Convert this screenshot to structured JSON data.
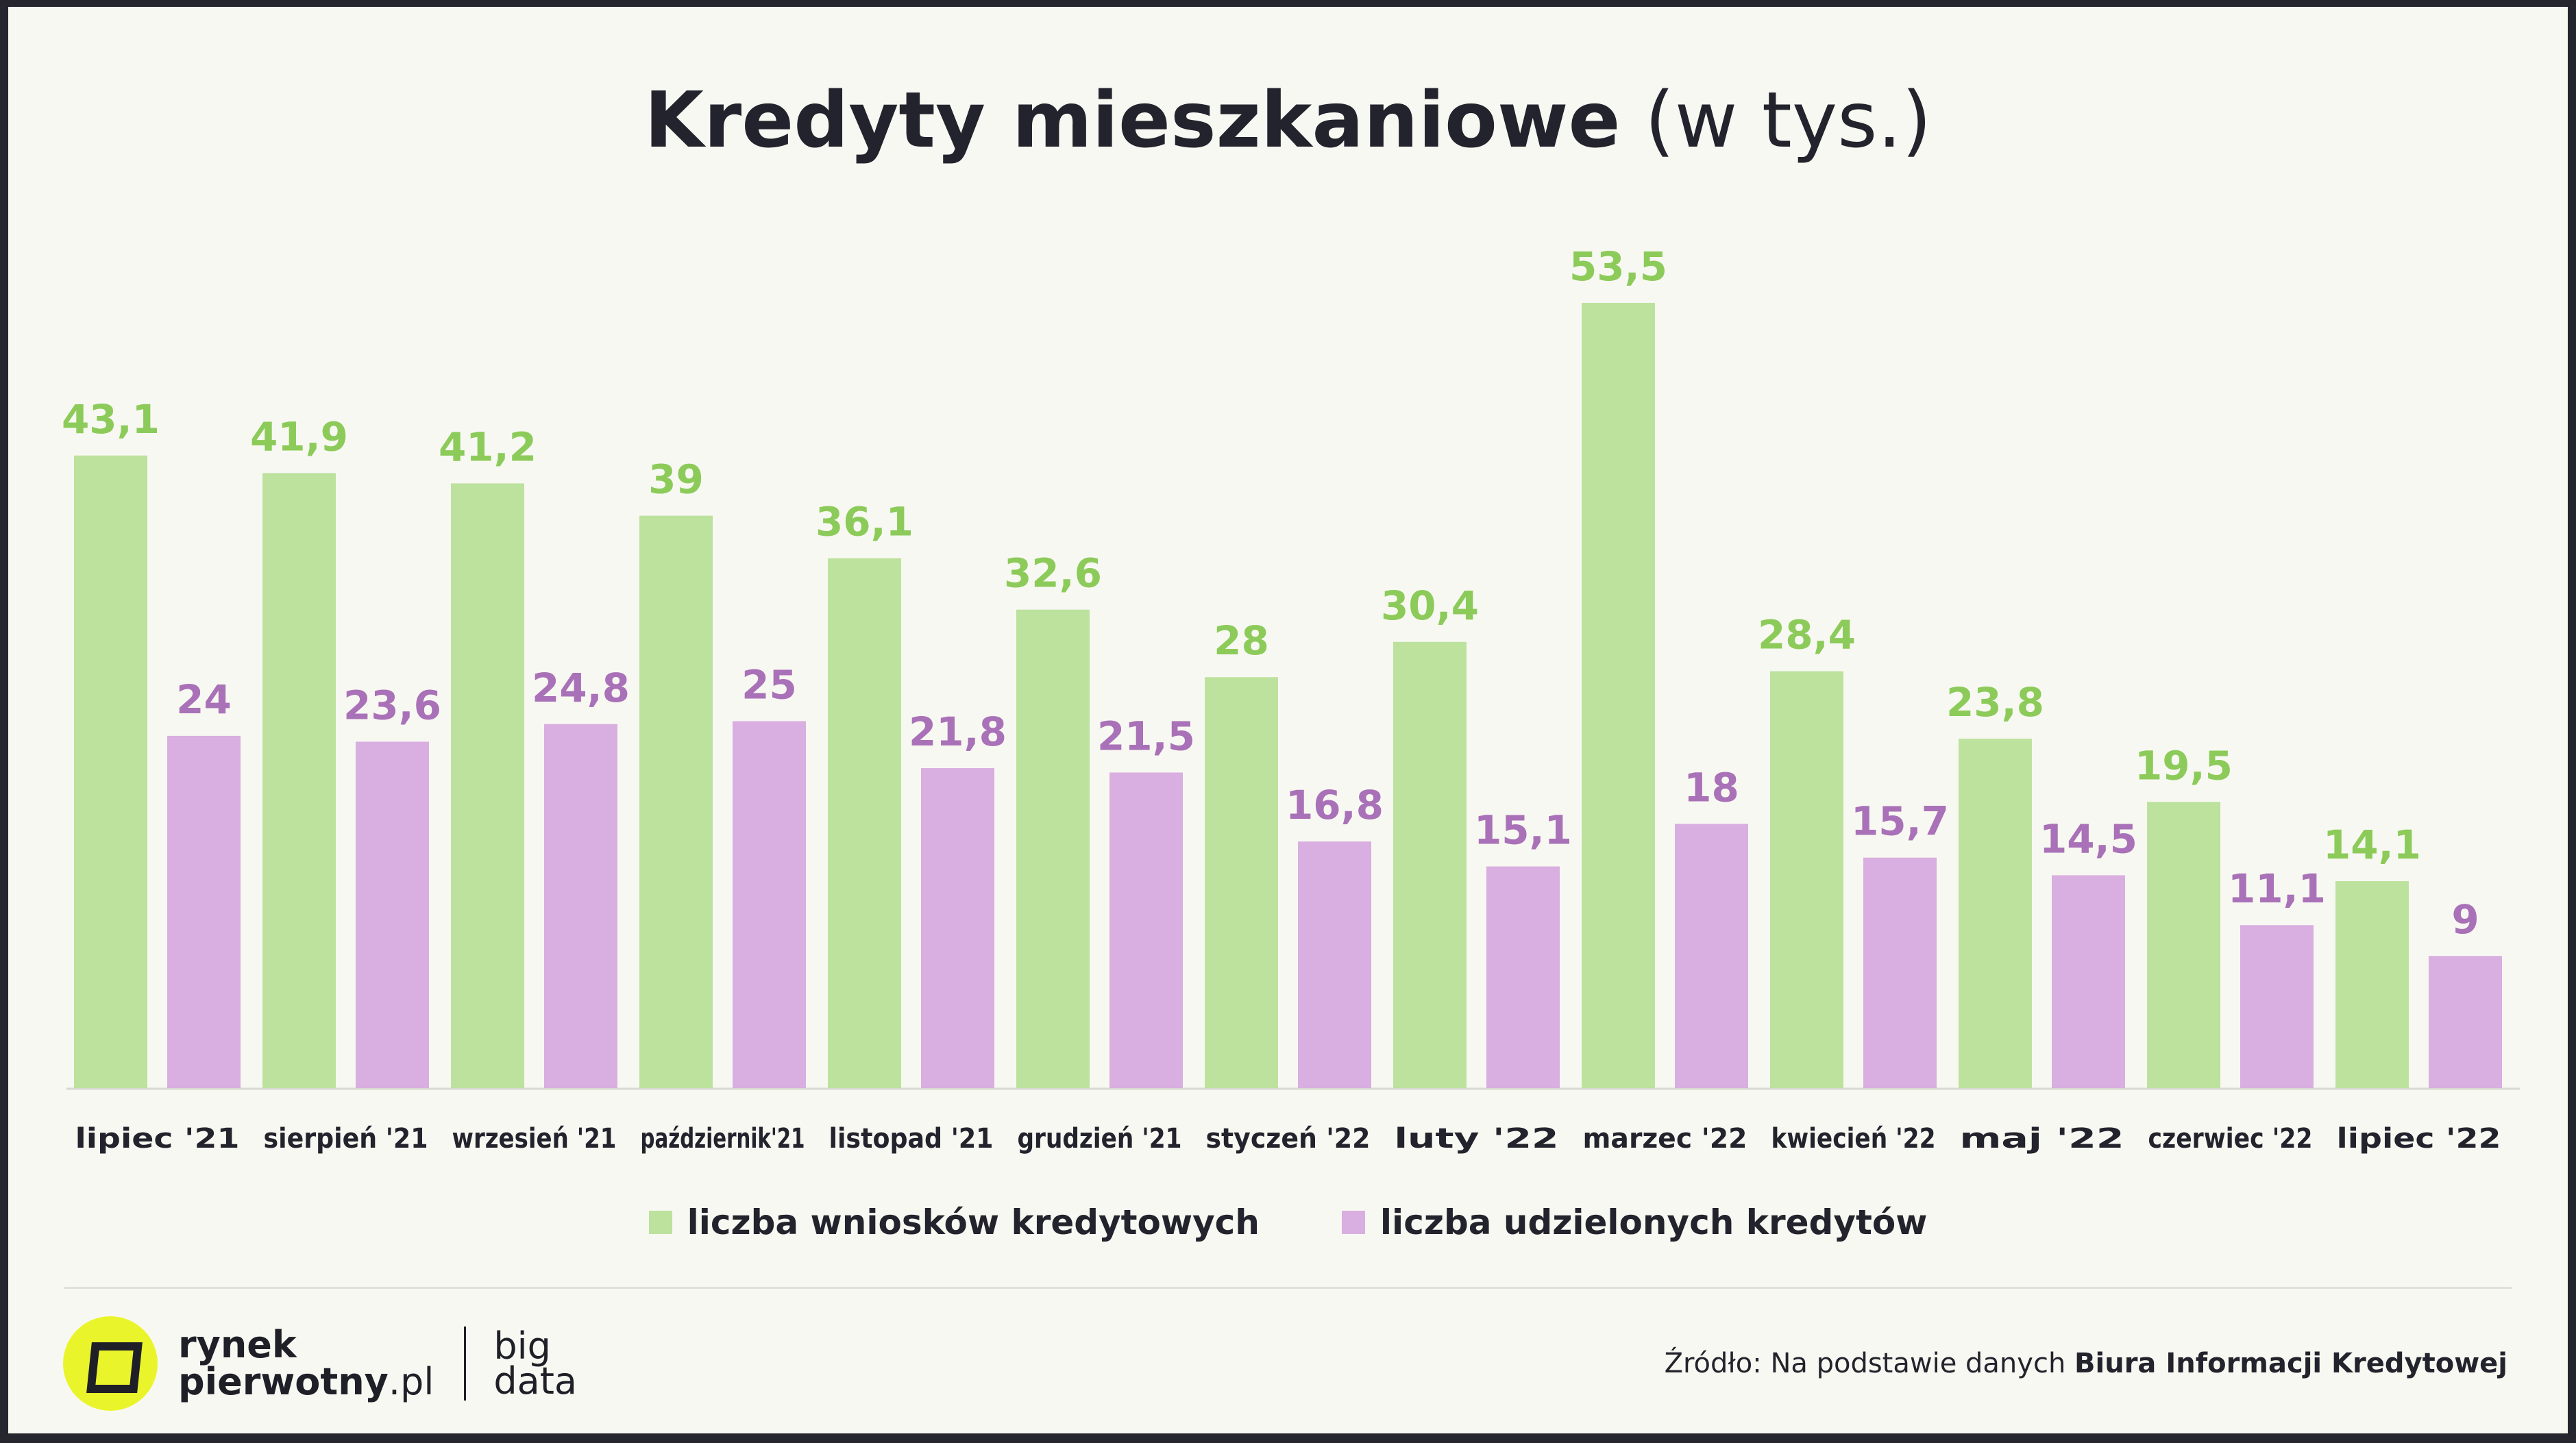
{
  "title": {
    "bold": "Kredyty mieszkaniowe",
    "normal": " (w tys.)"
  },
  "chart_data": {
    "type": "bar",
    "categories": [
      "lipiec '21",
      "sierpień '21",
      "wrzesień '21",
      "październik'21",
      "listopad '21",
      "grudzień '21",
      "styczeń '22",
      "luty '22",
      "marzec '22",
      "kwiecień '22",
      "maj '22",
      "czerwiec '22",
      "lipiec '22"
    ],
    "series": [
      {
        "name": "liczba wniosków kredytowych",
        "color": "#bce29e",
        "label_color": "#8ccb5a",
        "values": [
          43.1,
          41.9,
          41.2,
          39,
          36.1,
          32.6,
          28,
          30.4,
          53.5,
          28.4,
          23.8,
          19.5,
          14.1
        ],
        "labels": [
          "43,1",
          "41,9",
          "41,2",
          "39",
          "36,1",
          "32,6",
          "28",
          "30,4",
          "53,5",
          "28,4",
          "23,8",
          "19,5",
          "14,1"
        ]
      },
      {
        "name": "liczba udzielonych kredytów",
        "color": "#d9aee0",
        "label_color": "#a971b7",
        "values": [
          24,
          23.6,
          24.8,
          25,
          21.8,
          21.5,
          16.8,
          15.1,
          18,
          15.7,
          14.5,
          11.1,
          9
        ],
        "labels": [
          "24",
          "23,6",
          "24,8",
          "25",
          "21,8",
          "21,5",
          "16,8",
          "15,1",
          "18",
          "15,7",
          "14,5",
          "11,1",
          "9"
        ]
      }
    ],
    "ylim": [
      0,
      53.5
    ],
    "grid": false,
    "legend_position": "bottom-center"
  },
  "logo": {
    "line1": "rynek",
    "line2_bold": "pierwotny",
    "line2_normal": ".pl",
    "big_line1": "big",
    "big_line2": "data"
  },
  "source": {
    "prefix": "Źródło: Na podstawie danych ",
    "bold": "Biura Informacji Kredytowej"
  }
}
